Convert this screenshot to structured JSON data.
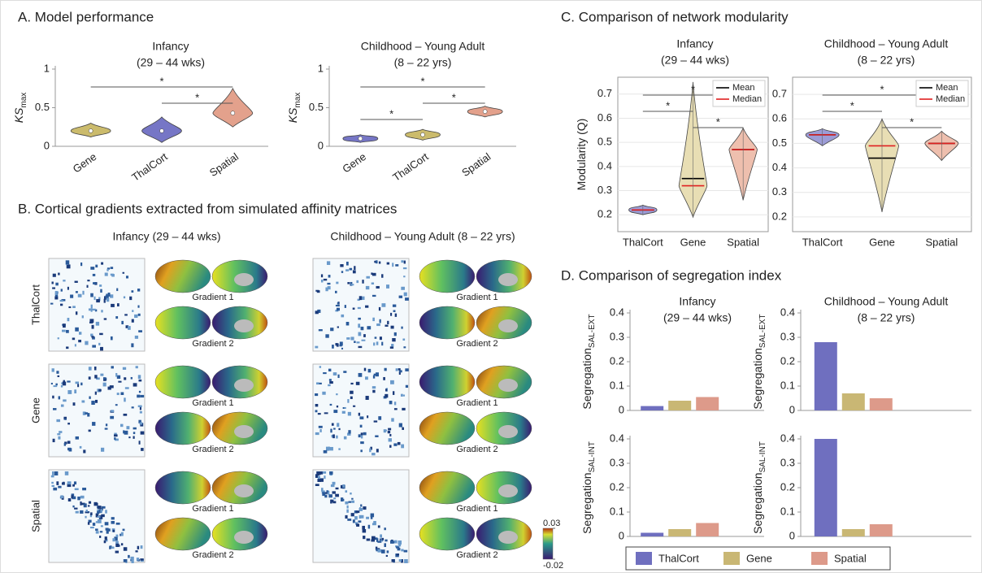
{
  "panels": {
    "A": "A. Model performance",
    "B": "B. Cortical gradients extracted from simulated affinity matrices",
    "C": "C. Comparison of network modularity",
    "D": "D. Comparison of segregation index"
  },
  "gradients": {
    "columns": [
      "Infancy (29 – 44 wks)",
      "Childhood – Young Adult (8 – 22 yrs)"
    ],
    "rows": [
      "ThalCort",
      "Gene",
      "Spatial"
    ],
    "labels": [
      "Gradient 1",
      "Gradient 2"
    ],
    "colorbar_ticks": [
      0.03,
      -0.02
    ]
  },
  "chart_data": [
    {
      "type": "violin",
      "title": [
        "Infancy",
        "(29 – 44 wks)"
      ],
      "ylabel": {
        "text": "KS",
        "sub": "max"
      },
      "categories": [
        "Gene",
        "ThalCort",
        "Spatial"
      ],
      "colors": [
        "#cbbb6c",
        "#7676c6",
        "#e3a18c"
      ],
      "values": [
        0.2,
        0.2,
        0.43
      ],
      "low": [
        0.12,
        0.05,
        0.25
      ],
      "high": [
        0.3,
        0.38,
        0.75
      ],
      "ylim": [
        0,
        1
      ],
      "yticks": [
        0,
        0.5,
        1
      ],
      "comparisons": [
        {
          "between": [
            "Gene",
            "Spatial"
          ],
          "label": "*"
        },
        {
          "between": [
            "ThalCort",
            "Spatial"
          ],
          "label": "*"
        }
      ]
    },
    {
      "type": "violin",
      "title": [
        "Childhood – Young Adult",
        "(8 – 22 yrs)"
      ],
      "ylabel": {
        "text": "KS",
        "sub": "max"
      },
      "categories": [
        "Gene",
        "ThalCort",
        "Spatial"
      ],
      "colors": [
        "#7676c6",
        "#cbbb6c",
        "#e3a18c"
      ],
      "values": [
        0.1,
        0.15,
        0.45
      ],
      "low": [
        0.05,
        0.08,
        0.38
      ],
      "high": [
        0.15,
        0.22,
        0.52
      ],
      "ylim": [
        0,
        1
      ],
      "yticks": [
        0,
        0.5,
        1
      ],
      "comparisons": [
        {
          "between": [
            "Gene",
            "Spatial"
          ],
          "label": "*"
        },
        {
          "between": [
            "ThalCort",
            "Spatial"
          ],
          "label": "*"
        },
        {
          "between": [
            "Gene",
            "ThalCort"
          ],
          "label": "*"
        }
      ]
    },
    {
      "type": "violin",
      "title": [
        "Infancy",
        "(29 – 44 wks)"
      ],
      "ylabel": {
        "text": "Modularity (Q)"
      },
      "categories": [
        "ThalCort",
        "Gene",
        "Spatial"
      ],
      "colors": [
        "#9c9cd6",
        "#e8deb4",
        "#eebfae"
      ],
      "series": [
        {
          "name": "Mean",
          "color": "#000000",
          "values": [
            0.22,
            0.35,
            0.47
          ]
        },
        {
          "name": "Median",
          "color": "#e02020",
          "values": [
            0.22,
            0.32,
            0.47
          ]
        }
      ],
      "low": [
        0.2,
        0.19,
        0.26
      ],
      "high": [
        0.24,
        0.75,
        0.56
      ],
      "ylim": [
        0.13,
        0.77
      ],
      "yticks": [
        0.2,
        0.3,
        0.4,
        0.5,
        0.6,
        0.7
      ],
      "grid": true,
      "comparisons": [
        {
          "between": [
            "ThalCort",
            "Spatial"
          ],
          "label": "*"
        },
        {
          "between": [
            "ThalCort",
            "Gene"
          ],
          "label": "*"
        },
        {
          "between": [
            "Gene",
            "Spatial"
          ],
          "label": "*"
        }
      ]
    },
    {
      "type": "violin",
      "title": [
        "Childhood – Young Adult",
        "(8 – 22 yrs)"
      ],
      "categories": [
        "ThalCort",
        "Gene",
        "Spatial"
      ],
      "colors": [
        "#9c9cd6",
        "#e8deb4",
        "#eebfae"
      ],
      "series": [
        {
          "name": "Mean",
          "color": "#000000",
          "values": [
            0.535,
            0.44,
            0.5
          ]
        },
        {
          "name": "Median",
          "color": "#e02020",
          "values": [
            0.535,
            0.49,
            0.5
          ]
        }
      ],
      "low": [
        0.49,
        0.22,
        0.43
      ],
      "high": [
        0.56,
        0.6,
        0.55
      ],
      "ylim": [
        0.14,
        0.77
      ],
      "yticks": [
        0.2,
        0.3,
        0.4,
        0.5,
        0.6,
        0.7
      ],
      "grid": true,
      "comparisons": [
        {
          "between": [
            "ThalCort",
            "Spatial"
          ],
          "label": "*"
        },
        {
          "between": [
            "ThalCort",
            "Gene"
          ],
          "label": "*"
        },
        {
          "between": [
            "Gene",
            "Spatial"
          ],
          "label": "*"
        }
      ]
    },
    {
      "type": "bar",
      "title": [
        "Infancy",
        "(29 – 44 wks)"
      ],
      "ylabel": {
        "text": "Segregation",
        "sub": "SAL-EXT"
      },
      "series": [
        {
          "name": "ThalCort",
          "color": "#6f6fbf",
          "values": [
            0.018
          ]
        },
        {
          "name": "Gene",
          "color": "#c9b774",
          "values": [
            0.04
          ]
        },
        {
          "name": "Spatial",
          "color": "#dd9a8a",
          "values": [
            0.055
          ]
        }
      ],
      "ylim": [
        0,
        0.4
      ],
      "yticks": [
        0,
        0.1,
        0.2,
        0.3,
        0.4
      ]
    },
    {
      "type": "bar",
      "title": [
        "Childhood – Young Adult",
        "(8 – 22 yrs)"
      ],
      "ylabel": {
        "text": "Segregation",
        "sub": "SAL-EXT"
      },
      "series": [
        {
          "name": "ThalCort",
          "color": "#6f6fbf",
          "values": [
            0.28
          ]
        },
        {
          "name": "Gene",
          "color": "#c9b774",
          "values": [
            0.07
          ]
        },
        {
          "name": "Spatial",
          "color": "#dd9a8a",
          "values": [
            0.05
          ]
        }
      ],
      "ylim": [
        0,
        0.4
      ],
      "yticks": [
        0,
        0.1,
        0.2,
        0.3,
        0.4
      ]
    },
    {
      "type": "bar",
      "ylabel": {
        "text": "Segregation",
        "sub": "SAL-INT"
      },
      "series": [
        {
          "name": "ThalCort",
          "color": "#6f6fbf",
          "values": [
            0.015
          ]
        },
        {
          "name": "Gene",
          "color": "#c9b774",
          "values": [
            0.03
          ]
        },
        {
          "name": "Spatial",
          "color": "#dd9a8a",
          "values": [
            0.055
          ]
        }
      ],
      "ylim": [
        0,
        0.4
      ],
      "yticks": [
        0,
        0.1,
        0.2,
        0.3,
        0.4
      ]
    },
    {
      "type": "bar",
      "ylabel": {
        "text": "Segregation",
        "sub": "SAL-INT"
      },
      "series": [
        {
          "name": "ThalCort",
          "color": "#6f6fbf",
          "values": [
            0.4
          ]
        },
        {
          "name": "Gene",
          "color": "#c9b774",
          "values": [
            0.03
          ]
        },
        {
          "name": "Spatial",
          "color": "#dd9a8a",
          "values": [
            0.05
          ]
        }
      ],
      "ylim": [
        0,
        0.4
      ],
      "yticks": [
        0,
        0.1,
        0.2,
        0.3,
        0.4
      ]
    }
  ]
}
